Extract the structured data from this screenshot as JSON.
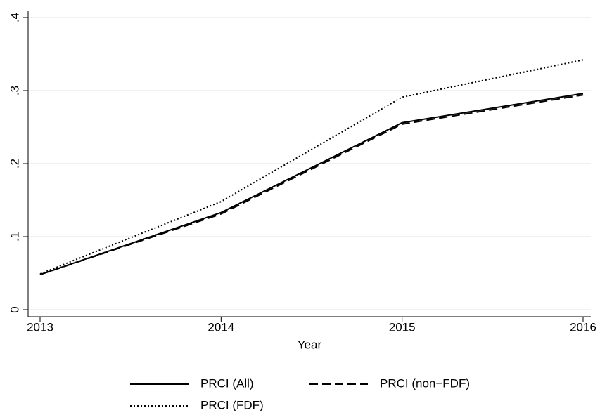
{
  "chart_data": {
    "type": "line",
    "x_label": "Year",
    "x": [
      2013,
      2014,
      2015,
      2016
    ],
    "series": [
      {
        "name": "PRCI (All)",
        "color": "#000000",
        "line_style": "solid",
        "values": [
          0.048,
          0.133,
          0.256,
          0.296
        ]
      },
      {
        "name": "PRCI (non−FDF)",
        "color": "#000000",
        "line_style": "dashed",
        "values": [
          0.048,
          0.131,
          0.254,
          0.294
        ]
      },
      {
        "name": "PRCI (FDF)",
        "color": "#000000",
        "line_style": "dotted",
        "values": [
          0.049,
          0.148,
          0.291,
          0.342
        ]
      }
    ],
    "xlim": [
      2013,
      2016
    ],
    "xticks": [
      2013,
      2014,
      2015,
      2016
    ],
    "ylim": [
      0,
      0.4
    ],
    "yticks": [
      0,
      {
        "value": 0.1,
        "label": ".1"
      },
      {
        "value": 0.2,
        "label": ".2"
      },
      {
        "value": 0.3,
        "label": ".3"
      },
      {
        "value": 0.4,
        "label": ".4"
      }
    ],
    "grid": true,
    "legend_position": "bottom"
  }
}
